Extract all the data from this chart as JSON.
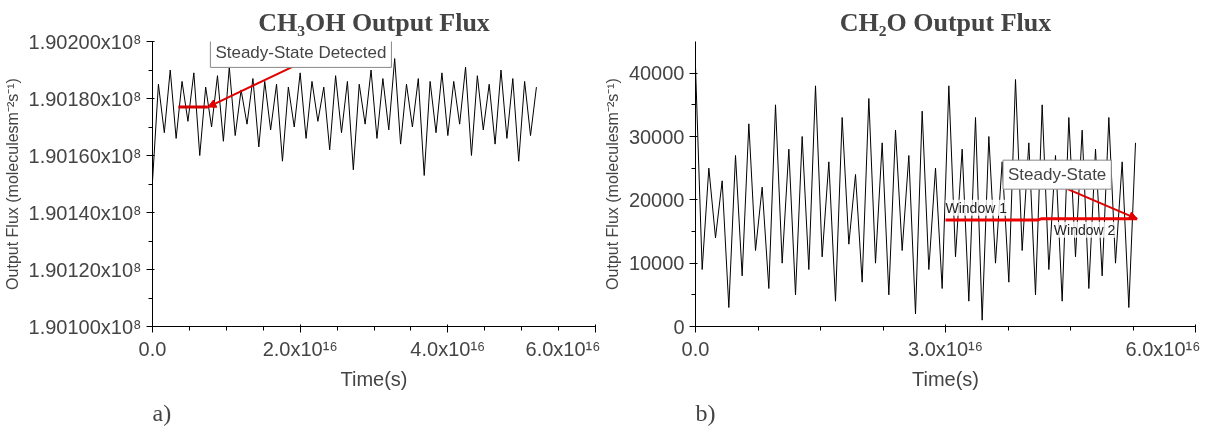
{
  "chart_data": [
    {
      "type": "line",
      "title": "CH₃OH Output Flux",
      "xlabel": "Time(s)",
      "ylabel": "Output Flux (moleculesm⁻²s⁻¹)",
      "xlim": [
        0,
        6e+16
      ],
      "ylim": [
        190100000,
        190200000
      ],
      "xticks": [
        {
          "value": 0,
          "label": "0.0"
        },
        {
          "value": 2e+16,
          "label": "2.0x10¹⁶"
        },
        {
          "value": 4e+16,
          "label": "4.0x10¹⁶"
        },
        {
          "value": 6e+16,
          "label": "6.0x10¹⁶"
        }
      ],
      "yticks": [
        {
          "value": 190100000,
          "label": "1.90100x10⁸"
        },
        {
          "value": 190120000,
          "label": "1.90120x10⁸"
        },
        {
          "value": 190140000,
          "label": "1.90140x10⁸"
        },
        {
          "value": 190160000,
          "label": "1.90160x10⁸"
        },
        {
          "value": 190180000,
          "label": "1.90180x10⁸"
        },
        {
          "value": 190200000,
          "label": "1.90200x10⁸"
        }
      ],
      "series": [
        {
          "color": "#000000",
          "x": [
            0,
            800000000000000.0,
            1600000000000000.0,
            2400000000000000.0,
            3200000000000000.0,
            4000000000000000.0,
            4800000000000000.0,
            5600000000000000.0,
            6400000000000000.0,
            7200000000000000.0,
            8000000000000000.0,
            8800000000000000.0,
            9600000000000000.0,
            1.04e+16,
            1.12e+16,
            1.2e+16,
            1.28e+16,
            1.36e+16,
            1.44e+16,
            1.52e+16,
            1.6e+16,
            1.68e+16,
            1.76e+16,
            1.84e+16,
            1.92e+16,
            2e+16,
            2.08e+16,
            2.16e+16,
            2.24e+16,
            2.32e+16,
            2.4e+16,
            2.48e+16,
            2.56e+16,
            2.64e+16,
            2.72e+16,
            2.8e+16,
            2.88e+16,
            2.96e+16,
            3.04e+16,
            3.12e+16,
            3.2e+16,
            3.28e+16,
            3.36e+16,
            3.44e+16,
            3.52e+16,
            3.6e+16,
            3.68e+16,
            3.76e+16,
            3.84e+16,
            3.92e+16,
            4e+16,
            4.08e+16,
            4.16e+16,
            4.24e+16,
            4.32e+16,
            4.4e+16,
            4.48e+16,
            4.56e+16,
            4.64e+16,
            4.72e+16,
            4.8e+16,
            4.88e+16,
            4.96e+16,
            5.04e+16,
            5.12e+16,
            5.2e+16
          ],
          "values": [
            190151000,
            190185000,
            190168000,
            190190000,
            190166000,
            190186000,
            190172000,
            190189000,
            190160000,
            190184000,
            190170000,
            190188000,
            190165000,
            190191000,
            190167000,
            190183000,
            190171000,
            190187000,
            190163000,
            190186000,
            190169000,
            190185000,
            190158000,
            190184000,
            190170000,
            190189000,
            190166000,
            190186000,
            190172000,
            190184000,
            190162000,
            190188000,
            190168000,
            190186000,
            190155000,
            190185000,
            190171000,
            190190000,
            190166000,
            190187000,
            190169000,
            190194000,
            190164000,
            190185000,
            190170000,
            190187000,
            190153000,
            190186000,
            190168000,
            190189000,
            190167000,
            190186000,
            190171000,
            190191000,
            190160000,
            190188000,
            190169000,
            190185000,
            190164000,
            190190000,
            190166000,
            190187000,
            190158000,
            190186000,
            190167000,
            190184000
          ]
        },
        {
          "color": "#d40000",
          "x": [
            3500000000000000.0,
            7500000000000000.0
          ],
          "values": [
            190177000,
            190177000
          ]
        }
      ],
      "annotations": [
        {
          "text": "Steady-State Detected",
          "x": 7500000000000000.0,
          "y": 190177000
        },
        "a)"
      ]
    },
    {
      "type": "line",
      "title": "CH₂O Output Flux",
      "xlabel": "Time(s)",
      "ylabel": "Output Flux (moleculesm⁻²s⁻¹)",
      "xlim": [
        0,
        6e+16
      ],
      "ylim": [
        0,
        45000
      ],
      "xticks": [
        {
          "value": 0,
          "label": "0.0"
        },
        {
          "value": 3e+16,
          "label": "3.0x10¹⁶"
        },
        {
          "value": 6e+16,
          "label": "6.0x10¹⁶"
        }
      ],
      "yticks": [
        0,
        10000,
        20000,
        30000,
        40000
      ],
      "series": [
        {
          "color": "#000000",
          "x": [
            0,
            800000000000000.0,
            1600000000000000.0,
            2400000000000000.0,
            3200000000000000.0,
            4000000000000000.0,
            4800000000000000.0,
            5600000000000000.0,
            6400000000000000.0,
            7200000000000000.0,
            8000000000000000.0,
            8800000000000000.0,
            9600000000000000.0,
            1.04e+16,
            1.12e+16,
            1.2e+16,
            1.28e+16,
            1.36e+16,
            1.44e+16,
            1.52e+16,
            1.6e+16,
            1.68e+16,
            1.76e+16,
            1.84e+16,
            1.92e+16,
            2e+16,
            2.08e+16,
            2.16e+16,
            2.24e+16,
            2.32e+16,
            2.4e+16,
            2.48e+16,
            2.56e+16,
            2.64e+16,
            2.72e+16,
            2.8e+16,
            2.88e+16,
            2.96e+16,
            3.04e+16,
            3.12e+16,
            3.2e+16,
            3.28e+16,
            3.36e+16,
            3.44e+16,
            3.52e+16,
            3.6e+16,
            3.68e+16,
            3.76e+16,
            3.84e+16,
            3.92e+16,
            4e+16,
            4.08e+16,
            4.16e+16,
            4.24e+16,
            4.32e+16,
            4.4e+16,
            4.48e+16,
            4.56e+16,
            4.64e+16,
            4.72e+16,
            4.8e+16,
            4.88e+16,
            4.96e+16,
            5.04e+16,
            5.12e+16,
            5.2e+16,
            5.28e+16
          ],
          "values": [
            41000,
            9000,
            25000,
            14000,
            23000,
            3000,
            27000,
            8000,
            32000,
            12000,
            22000,
            6000,
            35000,
            10000,
            28000,
            5000,
            30000,
            9000,
            38000,
            11000,
            26000,
            4000,
            33000,
            13000,
            24000,
            7000,
            36000,
            10000,
            29000,
            5000,
            31000,
            12000,
            27000,
            2000,
            34000,
            9000,
            25000,
            6000,
            38000,
            11000,
            28000,
            4000,
            33000,
            1000,
            30000,
            10000,
            26000,
            7000,
            39000,
            12000,
            29000,
            5000,
            35000,
            9000,
            27000,
            4000,
            33000,
            11000,
            31000,
            6000,
            28000,
            8000,
            33000,
            10000,
            26000,
            3000,
            29000
          ]
        },
        {
          "color": "#ee0000",
          "x": [
            3e+16,
            4.1e+16,
            4.15e+16,
            5.3e+16
          ],
          "values": [
            16800,
            16800,
            17000,
            17000
          ]
        }
      ],
      "annotations": [
        {
          "text": "Steady-State",
          "x": 5.3e+16,
          "y": 17000
        },
        {
          "text": "Window 1",
          "x": 3e+16,
          "y": 17000
        },
        {
          "text": "Window 2",
          "x": 4.3e+16,
          "y": 17000
        },
        "b)"
      ]
    }
  ]
}
